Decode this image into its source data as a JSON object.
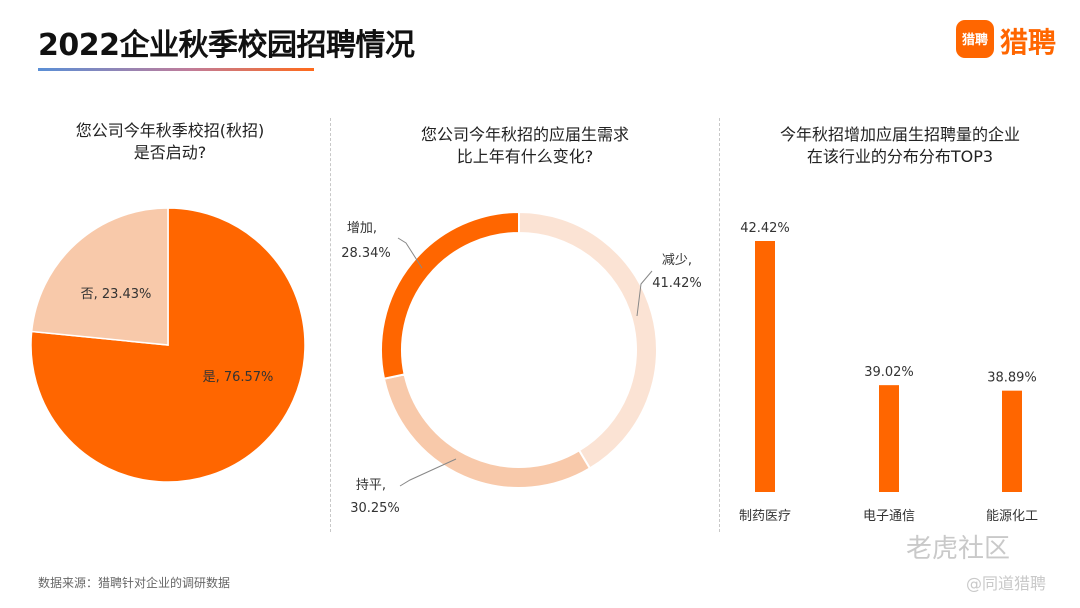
{
  "header": {
    "title": "2022企业秋季校园招聘情况"
  },
  "logo": {
    "icon_text": "猎聘",
    "text": "猎聘",
    "color": "#ff6600"
  },
  "colors": {
    "orange": "#ff6600",
    "peach": "#f8c9aa",
    "light_peach": "#fbe3d4"
  },
  "chart_data": [
    {
      "type": "pie",
      "title_line1": "您公司今年秋季校招(秋招)",
      "title_line2": "是否启动?",
      "slices": [
        {
          "label": "是",
          "value": 76.57,
          "text": "是, 76.57%",
          "color": "#ff6600"
        },
        {
          "label": "否",
          "value": 23.43,
          "text": "否, 23.43%",
          "color": "#f8c9aa"
        }
      ]
    },
    {
      "type": "donut",
      "title_line1": "您公司今年秋招的应届生需求",
      "title_line2": "比上年有什么变化?",
      "slices": [
        {
          "label": "减少",
          "value": 41.42,
          "name_text": "减少,",
          "value_text": "41.42%",
          "color": "#fbe3d4"
        },
        {
          "label": "持平",
          "value": 30.25,
          "name_text": "持平,",
          "value_text": "30.25%",
          "color": "#f8c9aa"
        },
        {
          "label": "增加",
          "value": 28.34,
          "name_text": "增加,",
          "value_text": "28.34%",
          "color": "#ff6600"
        }
      ]
    },
    {
      "type": "bar",
      "title_line1": "今年秋招增加应届生招聘量的企业",
      "title_line2": "在该行业的分布分布TOP3",
      "categories": [
        "制药医疗",
        "电子通信",
        "能源化工"
      ],
      "values": [
        42.42,
        39.02,
        38.89
      ],
      "value_labels": [
        "42.42%",
        "39.02%",
        "38.89%"
      ],
      "color": "#ff6600"
    }
  ],
  "footer": {
    "source": "数据来源：猎聘针对企业的调研数据"
  },
  "watermark": {
    "line1": "老虎社区",
    "line2": "@同道猎聘"
  }
}
